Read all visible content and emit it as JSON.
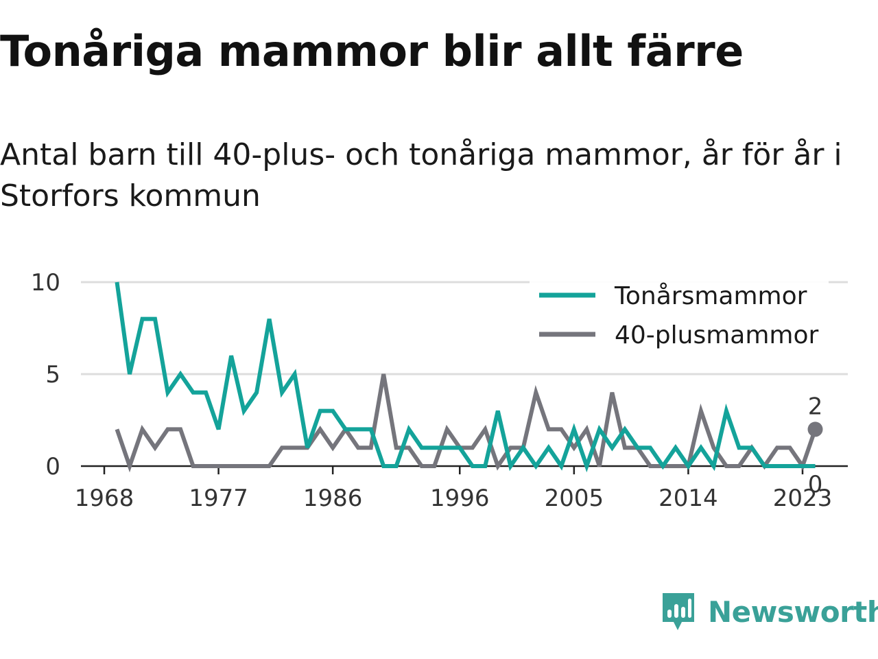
{
  "title": "Tonåriga mammor blir allt färre",
  "subtitle": "Antal barn till 40-plus- och tonåriga mammor, år för år i Storfors kommun",
  "brand": {
    "name": "Newsworthy",
    "color": "#3aa198",
    "icon": "newsworthy-logo-icon"
  },
  "chart_data": {
    "type": "line",
    "x_ticks": [
      "1968",
      "1977",
      "1986",
      "1996",
      "2005",
      "2014",
      "2023"
    ],
    "y_ticks": [
      "0",
      "5",
      "10"
    ],
    "ylim": [
      0,
      10
    ],
    "grid": true,
    "legend_position": "top-right",
    "x": [
      1969,
      1970,
      1971,
      1972,
      1973,
      1974,
      1975,
      1976,
      1977,
      1978,
      1979,
      1980,
      1981,
      1982,
      1983,
      1984,
      1985,
      1986,
      1987,
      1988,
      1989,
      1990,
      1991,
      1992,
      1993,
      1994,
      1995,
      1996,
      1997,
      1998,
      1999,
      2000,
      2001,
      2002,
      2003,
      2004,
      2005,
      2006,
      2007,
      2008,
      2009,
      2010,
      2011,
      2012,
      2013,
      2014,
      2015,
      2016,
      2017,
      2018,
      2019,
      2020,
      2021,
      2022,
      2023,
      2024
    ],
    "series": [
      {
        "name": "Tonårsmammor",
        "color": "#14a39a",
        "values": [
          10,
          5,
          8,
          8,
          4,
          5,
          4,
          4,
          2,
          6,
          3,
          4,
          8,
          4,
          5,
          1,
          3,
          3,
          2,
          2,
          2,
          0,
          0,
          2,
          1,
          1,
          1,
          1,
          0,
          0,
          3,
          0,
          1,
          0,
          1,
          0,
          2,
          0,
          2,
          1,
          2,
          1,
          1,
          0,
          1,
          0,
          1,
          0,
          3,
          1,
          1,
          0,
          0,
          0,
          0,
          0
        ],
        "end_label": "0"
      },
      {
        "name": "40-plusmammor",
        "color": "#75757c",
        "values": [
          2,
          0,
          2,
          1,
          2,
          2,
          0,
          0,
          0,
          0,
          0,
          0,
          0,
          1,
          1,
          1,
          2,
          1,
          2,
          1,
          1,
          5,
          1,
          1,
          0,
          0,
          2,
          1,
          1,
          2,
          0,
          1,
          1,
          4,
          2,
          2,
          1,
          2,
          0,
          4,
          1,
          1,
          0,
          0,
          0,
          0,
          3,
          1,
          0,
          0,
          1,
          0,
          1,
          1,
          0,
          2
        ],
        "end_label": "2"
      }
    ]
  }
}
